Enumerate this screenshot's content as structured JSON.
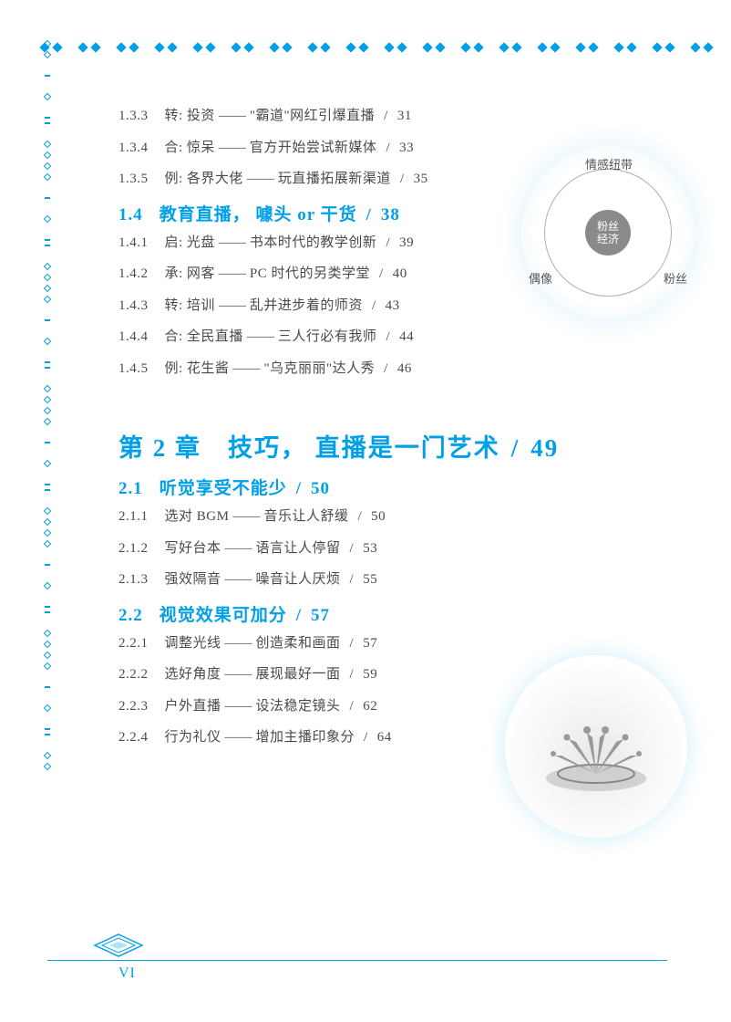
{
  "colors": {
    "accent": "#00a0e9",
    "text": "#4a4a4a"
  },
  "toc": {
    "items_top": [
      {
        "n": "1.3.3",
        "pre": "转:",
        "a": "投资",
        "b": "\"霸道\"网红引爆直播",
        "p": "31"
      },
      {
        "n": "1.3.4",
        "pre": "合:",
        "a": "惊呆",
        "b": "官方开始尝试新媒体",
        "p": "33"
      },
      {
        "n": "1.3.5",
        "pre": "例:",
        "a": "各界大佬",
        "b": "玩直播拓展新渠道",
        "p": "35"
      }
    ],
    "sec14": {
      "n": "1.4",
      "t": "教育直播， 噱头 or 干货",
      "p": "38"
    },
    "items_14": [
      {
        "n": "1.4.1",
        "pre": "启:",
        "a": "光盘",
        "b": "书本时代的教学创新",
        "p": "39"
      },
      {
        "n": "1.4.2",
        "pre": "承:",
        "a": "网客",
        "b": "PC 时代的另类学堂",
        "p": "40"
      },
      {
        "n": "1.4.3",
        "pre": "转:",
        "a": "培训",
        "b": "乱并进步着的师资",
        "p": "43"
      },
      {
        "n": "1.4.4",
        "pre": "合:",
        "a": "全民直播",
        "b": "三人行必有我师",
        "p": "44"
      },
      {
        "n": "1.4.5",
        "pre": "例:",
        "a": "花生酱",
        "b": "\"乌克丽丽\"达人秀",
        "p": "46"
      }
    ],
    "chapter2": {
      "t": "第 2 章　技巧， 直播是一门艺术",
      "p": "49"
    },
    "sec21": {
      "n": "2.1",
      "t": "听觉享受不能少",
      "p": "50"
    },
    "items_21": [
      {
        "n": "2.1.1",
        "a": "选对 BGM",
        "b": "音乐让人舒缓",
        "p": "50"
      },
      {
        "n": "2.1.2",
        "a": "写好台本",
        "b": "语言让人停留",
        "p": "53"
      },
      {
        "n": "2.1.3",
        "a": "强效隔音",
        "b": "噪音让人厌烦",
        "p": "55"
      }
    ],
    "sec22": {
      "n": "2.2",
      "t": "视觉效果可加分",
      "p": "57"
    },
    "items_22": [
      {
        "n": "2.2.1",
        "a": "调整光线",
        "b": "创造柔和画面",
        "p": "57"
      },
      {
        "n": "2.2.2",
        "a": "选好角度",
        "b": "展现最好一面",
        "p": "59"
      },
      {
        "n": "2.2.3",
        "a": "户外直播",
        "b": "设法稳定镜头",
        "p": "62"
      },
      {
        "n": "2.2.4",
        "a": "行为礼仪",
        "b": "增加主播印象分",
        "p": "64"
      }
    ]
  },
  "diagram": {
    "top": "情感纽带",
    "left": "偶像",
    "right": "粉丝",
    "center": "粉丝\n经济"
  },
  "page_number": "VI"
}
